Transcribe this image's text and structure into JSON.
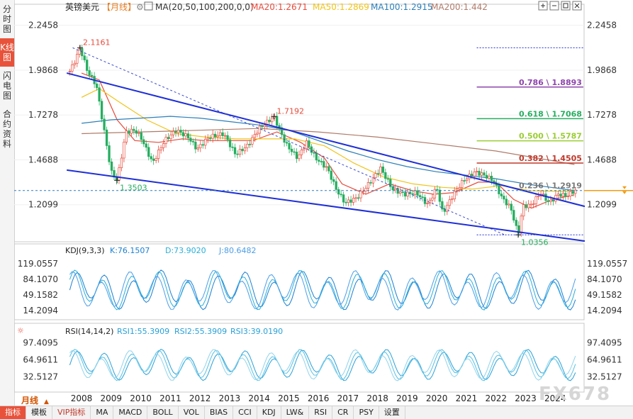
{
  "side_tabs": [
    {
      "label": "分时图",
      "active": false
    },
    {
      "label": "K线图",
      "active": true
    },
    {
      "label": "闪电图",
      "active": false
    },
    {
      "label": "合约资料",
      "active": false
    }
  ],
  "header": {
    "symbol": "英镑美元",
    "period_tag": "【月线】",
    "ma_params": "MA(20,50,100,200,0,0)",
    "ma20": "MA20:1.2671",
    "ma50": "MA50:1.2869",
    "ma100": "MA100:1.2915",
    "ma200": "MA200:1.442"
  },
  "colors": {
    "up": "#e74c3c",
    "down": "#27ae60",
    "ma20": "#e74c3c",
    "ma50": "#f0c419",
    "ma100": "#2c7fb8",
    "ma200": "#b07b6a",
    "channel": "#1e2fd6",
    "kdj_k": "#1a7fd1",
    "kdj_d": "#27b0d8",
    "kdj_j": "#4a9de8",
    "rsi": "#29a0d8",
    "price": "#f39c12"
  },
  "chart_data": {
    "type": "candlestick",
    "title": "英镑美元 月线",
    "x_labels": [
      "2008",
      "2009",
      "2010",
      "2011",
      "2012",
      "2013",
      "2014",
      "2015",
      "2016",
      "2017",
      "2018",
      "2019",
      "2020",
      "2021",
      "2022",
      "2023",
      "2024"
    ],
    "xlim": [
      2007.4,
      2025.0
    ],
    "price_axis": {
      "ticks": [
        "2.2458",
        "1.9868",
        "1.7278",
        "1.4688",
        "1.2099"
      ],
      "ylim": [
        1.0,
        2.31
      ]
    },
    "last_price": "1.2919",
    "annotations": {
      "high": "2.1161",
      "mid_high": "1.7192",
      "low_2009": "1.3503",
      "low": "1.0356"
    },
    "fibonacci": [
      {
        "label": "0.786 \\ 1.8893",
        "value": 1.8893,
        "color": "#8e44ad"
      },
      {
        "label": "0.618 \\ 1.7068",
        "value": 1.7068,
        "color": "#27ae60"
      },
      {
        "label": "0.500 \\ 1.5787",
        "value": 1.5787,
        "color": "#9acd32"
      },
      {
        "label": "0.382 \\ 1.4505",
        "value": 1.4505,
        "color": "#c0392b"
      },
      {
        "label": "0.236 \\ 1.2919",
        "value": 1.2919,
        "color": "#777777"
      }
    ],
    "channel_upper": [
      [
        2007.5,
        1.97
      ],
      [
        2025.0,
        1.2
      ]
    ],
    "channel_lower": [
      [
        2007.5,
        1.41
      ],
      [
        2025.0,
        1.0
      ]
    ],
    "dashed_trend": [
      [
        2007.7,
        2.1161
      ],
      [
        2022.3,
        1.0356
      ]
    ],
    "price_path": [
      [
        2007.6,
        1.98
      ],
      [
        2007.8,
        2.05
      ],
      [
        2007.95,
        2.1161
      ],
      [
        2008.2,
        1.98
      ],
      [
        2008.5,
        1.9
      ],
      [
        2008.8,
        1.6
      ],
      [
        2009.0,
        1.4
      ],
      [
        2009.2,
        1.3503
      ],
      [
        2009.5,
        1.63
      ],
      [
        2009.8,
        1.64
      ],
      [
        2010.0,
        1.6
      ],
      [
        2010.4,
        1.45
      ],
      [
        2010.8,
        1.58
      ],
      [
        2011.2,
        1.64
      ],
      [
        2011.6,
        1.6
      ],
      [
        2011.9,
        1.53
      ],
      [
        2012.3,
        1.6
      ],
      [
        2012.8,
        1.62
      ],
      [
        2013.2,
        1.5
      ],
      [
        2013.6,
        1.55
      ],
      [
        2014.0,
        1.65
      ],
      [
        2014.5,
        1.7192
      ],
      [
        2014.9,
        1.56
      ],
      [
        2015.3,
        1.48
      ],
      [
        2015.6,
        1.57
      ],
      [
        2015.9,
        1.48
      ],
      [
        2016.3,
        1.42
      ],
      [
        2016.6,
        1.3
      ],
      [
        2016.9,
        1.22
      ],
      [
        2017.3,
        1.25
      ],
      [
        2017.7,
        1.33
      ],
      [
        2018.1,
        1.42
      ],
      [
        2018.5,
        1.3
      ],
      [
        2018.9,
        1.27
      ],
      [
        2019.3,
        1.28
      ],
      [
        2019.7,
        1.21
      ],
      [
        2020.0,
        1.31
      ],
      [
        2020.2,
        1.16
      ],
      [
        2020.6,
        1.28
      ],
      [
        2020.9,
        1.35
      ],
      [
        2021.3,
        1.4
      ],
      [
        2021.6,
        1.38
      ],
      [
        2021.9,
        1.35
      ],
      [
        2022.2,
        1.25
      ],
      [
        2022.5,
        1.19
      ],
      [
        2022.75,
        1.0356
      ],
      [
        2022.9,
        1.2
      ],
      [
        2023.2,
        1.21
      ],
      [
        2023.5,
        1.28
      ],
      [
        2023.8,
        1.22
      ],
      [
        2024.1,
        1.27
      ],
      [
        2024.4,
        1.26
      ],
      [
        2024.65,
        1.2919
      ]
    ],
    "ma_series": [
      {
        "name": "MA20",
        "points": [
          [
            2008.0,
            1.97
          ],
          [
            2008.6,
            1.93
          ],
          [
            2009.2,
            1.7
          ],
          [
            2009.8,
            1.58
          ],
          [
            2010.6,
            1.57
          ],
          [
            2011.4,
            1.59
          ],
          [
            2012.2,
            1.58
          ],
          [
            2013.0,
            1.58
          ],
          [
            2013.8,
            1.58
          ],
          [
            2014.6,
            1.63
          ],
          [
            2015.4,
            1.57
          ],
          [
            2016.2,
            1.48
          ],
          [
            2016.8,
            1.33
          ],
          [
            2017.6,
            1.27
          ],
          [
            2018.4,
            1.33
          ],
          [
            2019.2,
            1.29
          ],
          [
            2019.9,
            1.27
          ],
          [
            2020.6,
            1.28
          ],
          [
            2021.4,
            1.34
          ],
          [
            2022.0,
            1.34
          ],
          [
            2022.6,
            1.24
          ],
          [
            2023.2,
            1.19
          ],
          [
            2023.9,
            1.24
          ],
          [
            2024.65,
            1.2671
          ]
        ]
      },
      {
        "name": "MA50",
        "points": [
          [
            2008.0,
            1.83
          ],
          [
            2008.6,
            1.88
          ],
          [
            2009.3,
            1.8
          ],
          [
            2010.2,
            1.7
          ],
          [
            2011.2,
            1.62
          ],
          [
            2012.2,
            1.6
          ],
          [
            2013.2,
            1.59
          ],
          [
            2014.2,
            1.59
          ],
          [
            2015.2,
            1.59
          ],
          [
            2016.2,
            1.55
          ],
          [
            2017.2,
            1.45
          ],
          [
            2018.2,
            1.37
          ],
          [
            2019.2,
            1.33
          ],
          [
            2020.2,
            1.31
          ],
          [
            2021.2,
            1.3
          ],
          [
            2022.2,
            1.32
          ],
          [
            2023.2,
            1.29
          ],
          [
            2024.65,
            1.2869
          ]
        ]
      },
      {
        "name": "MA100",
        "points": [
          [
            2008.0,
            1.68
          ],
          [
            2009.0,
            1.7
          ],
          [
            2010.0,
            1.71
          ],
          [
            2011.0,
            1.72
          ],
          [
            2012.0,
            1.71
          ],
          [
            2013.0,
            1.69
          ],
          [
            2014.0,
            1.67
          ],
          [
            2015.0,
            1.64
          ],
          [
            2016.0,
            1.58
          ],
          [
            2017.0,
            1.52
          ],
          [
            2018.0,
            1.47
          ],
          [
            2019.0,
            1.43
          ],
          [
            2020.0,
            1.4
          ],
          [
            2021.0,
            1.38
          ],
          [
            2022.0,
            1.36
          ],
          [
            2023.0,
            1.33
          ],
          [
            2024.65,
            1.2915
          ]
        ]
      },
      {
        "name": "MA200",
        "points": [
          [
            2008.0,
            1.62
          ],
          [
            2010.0,
            1.63
          ],
          [
            2012.0,
            1.64
          ],
          [
            2014.0,
            1.65
          ],
          [
            2016.0,
            1.63
          ],
          [
            2018.0,
            1.6
          ],
          [
            2020.0,
            1.56
          ],
          [
            2022.0,
            1.52
          ],
          [
            2024.65,
            1.442
          ]
        ]
      }
    ],
    "kdj": {
      "label": "KDJ(9,3,3)",
      "k": "K:76.1507",
      "d": "D:73.9020",
      "j": "J:80.6482",
      "ticks": [
        "119.0557",
        "84.1070",
        "49.1582",
        "14.2094"
      ],
      "ylim": [
        -5,
        135
      ]
    },
    "rsi": {
      "label": "RSI(14,14,2)",
      "rsi1": "RSI1:55.3909",
      "rsi2": "RSI2:55.3909",
      "rsi3": "RSI3:39.0190",
      "ticks": [
        "97.4095",
        "64.9611",
        "32.5127"
      ],
      "ylim": [
        5,
        110
      ]
    }
  },
  "period_selector": "月线",
  "bottom_tabs": [
    "指标",
    "模板",
    "VIP指标",
    "MA",
    "MACD",
    "BOLL",
    "VOL",
    "BIAS",
    "CCI",
    "KDJ",
    "LW&",
    "RSI",
    "CR",
    "PSY",
    "设置"
  ],
  "watermark": "FX678",
  "toolbar_icons": [
    "zoom-in-icon",
    "zoom-out-icon",
    "fit-icon",
    "close-icon"
  ]
}
